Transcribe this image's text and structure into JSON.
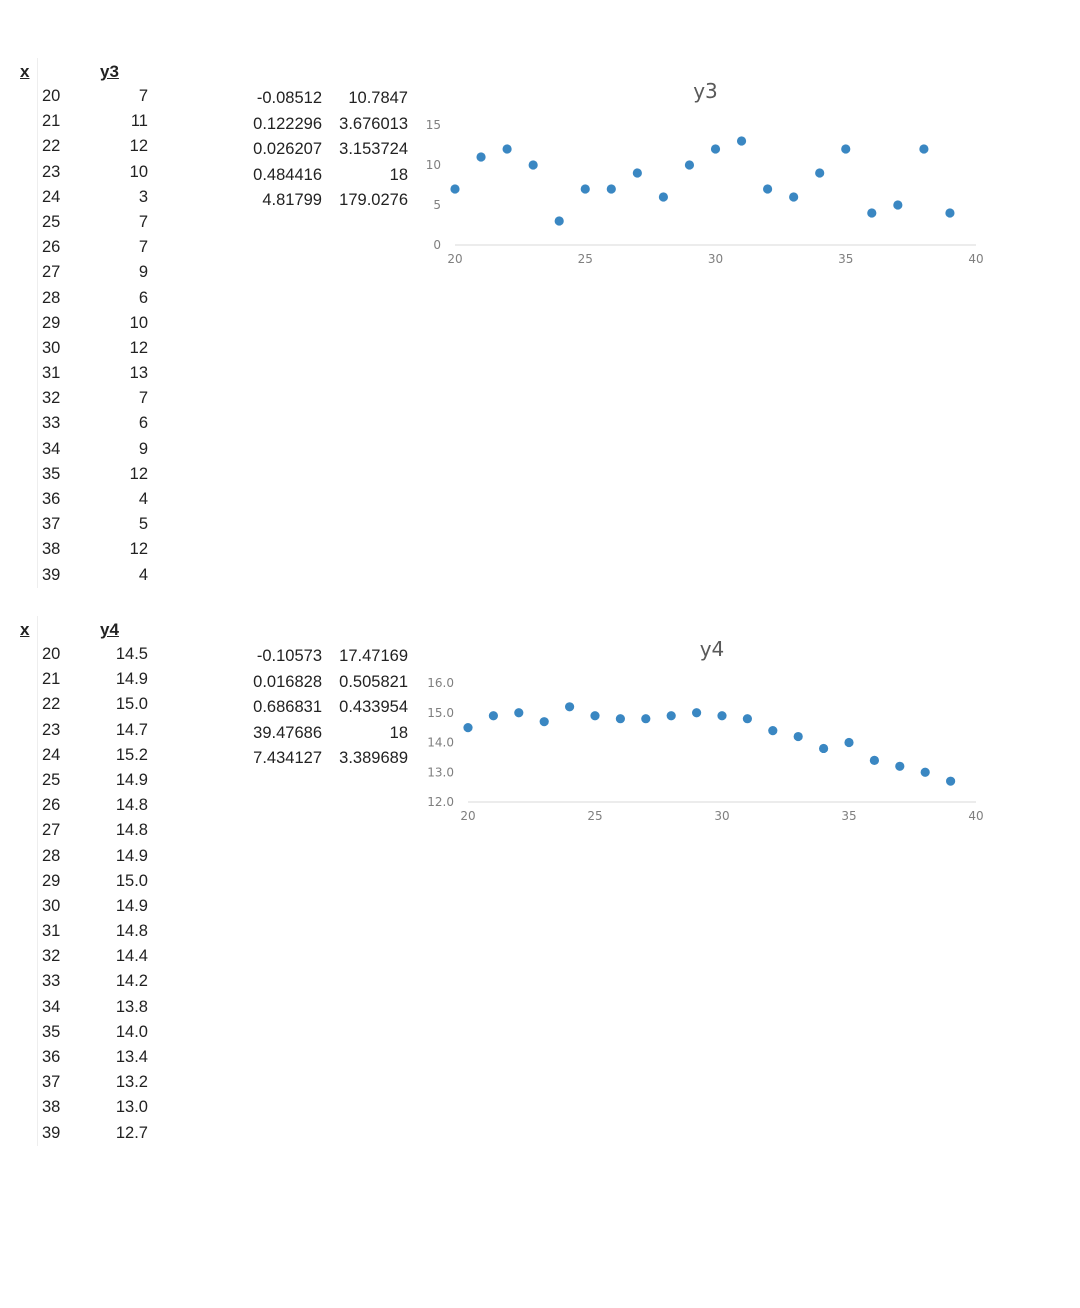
{
  "sheets": [
    {
      "x_header": "x",
      "y_header": "y3",
      "rows": [
        {
          "x": "20",
          "y": "7"
        },
        {
          "x": "21",
          "y": "11"
        },
        {
          "x": "22",
          "y": "12"
        },
        {
          "x": "23",
          "y": "10"
        },
        {
          "x": "24",
          "y": "3"
        },
        {
          "x": "25",
          "y": "7"
        },
        {
          "x": "26",
          "y": "7"
        },
        {
          "x": "27",
          "y": "9"
        },
        {
          "x": "28",
          "y": "6"
        },
        {
          "x": "29",
          "y": "10"
        },
        {
          "x": "30",
          "y": "12"
        },
        {
          "x": "31",
          "y": "13"
        },
        {
          "x": "32",
          "y": "7"
        },
        {
          "x": "33",
          "y": "6"
        },
        {
          "x": "34",
          "y": "9"
        },
        {
          "x": "35",
          "y": "12"
        },
        {
          "x": "36",
          "y": "4"
        },
        {
          "x": "37",
          "y": "5"
        },
        {
          "x": "38",
          "y": "12"
        },
        {
          "x": "39",
          "y": "4"
        }
      ],
      "stats": [
        [
          "-0.08512",
          "10.7847"
        ],
        [
          "0.122296",
          "3.676013"
        ],
        [
          "0.026207",
          "3.153724"
        ],
        [
          "0.484416",
          "18"
        ],
        [
          "4.81799",
          "179.0276"
        ]
      ]
    },
    {
      "x_header": "x",
      "y_header": "y4",
      "rows": [
        {
          "x": "20",
          "y": "14.5"
        },
        {
          "x": "21",
          "y": "14.9"
        },
        {
          "x": "22",
          "y": "15.0"
        },
        {
          "x": "23",
          "y": "14.7"
        },
        {
          "x": "24",
          "y": "15.2"
        },
        {
          "x": "25",
          "y": "14.9"
        },
        {
          "x": "26",
          "y": "14.8"
        },
        {
          "x": "27",
          "y": "14.8"
        },
        {
          "x": "28",
          "y": "14.9"
        },
        {
          "x": "29",
          "y": "15.0"
        },
        {
          "x": "30",
          "y": "14.9"
        },
        {
          "x": "31",
          "y": "14.8"
        },
        {
          "x": "32",
          "y": "14.4"
        },
        {
          "x": "33",
          "y": "14.2"
        },
        {
          "x": "34",
          "y": "13.8"
        },
        {
          "x": "35",
          "y": "14.0"
        },
        {
          "x": "36",
          "y": "13.4"
        },
        {
          "x": "37",
          "y": "13.2"
        },
        {
          "x": "38",
          "y": "13.0"
        },
        {
          "x": "39",
          "y": "12.7"
        }
      ],
      "stats": [
        [
          "-0.10573",
          "17.47169"
        ],
        [
          "0.016828",
          "0.505821"
        ],
        [
          "0.686831",
          "0.433954"
        ],
        [
          "39.47686",
          "18"
        ],
        [
          "7.434127",
          "3.389689"
        ]
      ]
    }
  ],
  "chart_data": [
    {
      "type": "scatter",
      "title": "y3",
      "xlabel": "",
      "ylabel": "",
      "x": [
        20,
        21,
        22,
        23,
        24,
        25,
        26,
        27,
        28,
        29,
        30,
        31,
        32,
        33,
        34,
        35,
        36,
        37,
        38,
        39
      ],
      "series": [
        {
          "name": "y3",
          "values": [
            7,
            11,
            12,
            10,
            3,
            7,
            7,
            9,
            6,
            10,
            12,
            13,
            7,
            6,
            9,
            12,
            4,
            5,
            12,
            4
          ]
        }
      ],
      "xlim": [
        20,
        40
      ],
      "ylim": [
        0,
        15
      ],
      "xticks": [
        "20",
        "25",
        "30",
        "35",
        "40"
      ],
      "yticks": [
        "0",
        "5",
        "10",
        "15"
      ],
      "grid": false,
      "color": "#3a87c2"
    },
    {
      "type": "scatter",
      "title": "y4",
      "xlabel": "",
      "ylabel": "",
      "x": [
        20,
        21,
        22,
        23,
        24,
        25,
        26,
        27,
        28,
        29,
        30,
        31,
        32,
        33,
        34,
        35,
        36,
        37,
        38,
        39
      ],
      "series": [
        {
          "name": "y4",
          "values": [
            14.5,
            14.9,
            15.0,
            14.7,
            15.2,
            14.9,
            14.8,
            14.8,
            14.9,
            15.0,
            14.9,
            14.8,
            14.4,
            14.2,
            13.8,
            14.0,
            13.4,
            13.2,
            13.0,
            12.7
          ]
        }
      ],
      "xlim": [
        20,
        40
      ],
      "ylim": [
        12,
        16
      ],
      "xticks": [
        "20",
        "25",
        "30",
        "35",
        "40"
      ],
      "yticks": [
        "12.0",
        "13.0",
        "14.0",
        "15.0",
        "16.0"
      ],
      "grid": false,
      "color": "#3a87c2"
    }
  ]
}
